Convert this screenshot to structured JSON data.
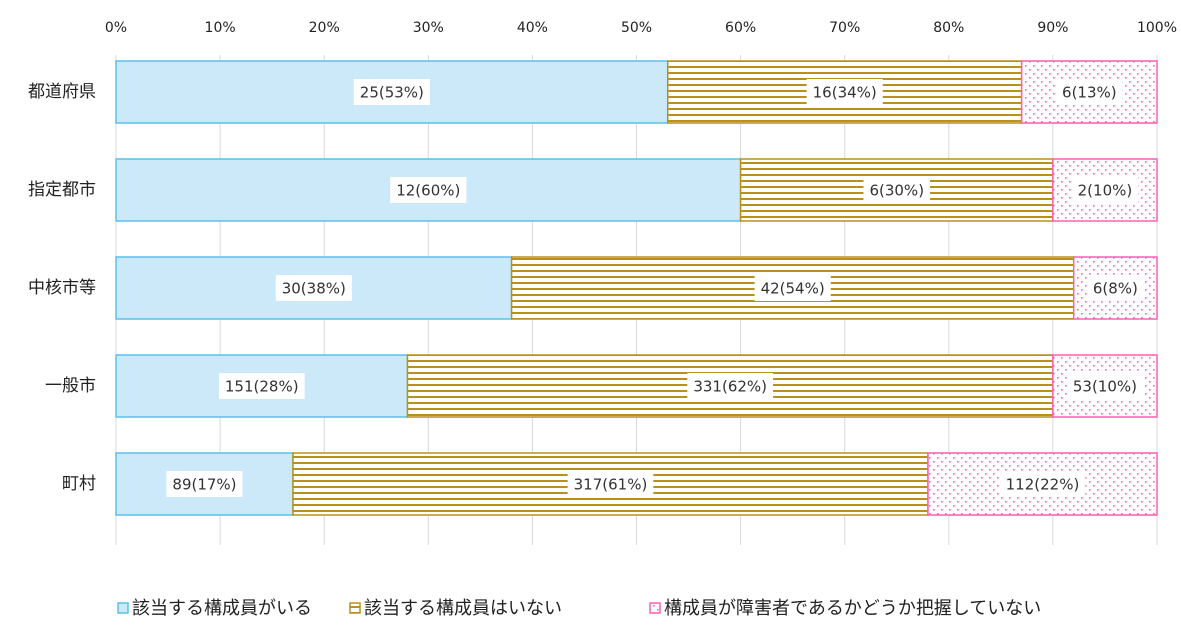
{
  "chart_data": {
    "type": "stacked-bar-horizontal",
    "categories": [
      "都道府県",
      "指定都市",
      "中核市等",
      "一般市",
      "町村"
    ],
    "series": [
      {
        "name": "該当する構成員がいる",
        "color": "#5bc0eb",
        "values": [
          53,
          60,
          38,
          28,
          17
        ],
        "value_labels": [
          "25(53%)",
          "12(60%)",
          "30(38%)",
          "151(28%)",
          "89(17%)"
        ]
      },
      {
        "name": "該当する構成員はいない",
        "color": "#b8901a",
        "values": [
          34,
          30,
          54,
          62,
          61
        ],
        "value_labels": [
          "16(34%)",
          "6(30%)",
          "42(54%)",
          "331(62%)",
          "317(61%)"
        ]
      },
      {
        "name": "構成員が障害者であるかどうか把握していない",
        "color": "#ff5fb4",
        "values": [
          13,
          10,
          8,
          10,
          22
        ],
        "value_labels": [
          "6(13%)",
          "2(10%)",
          "6(8%)",
          "53(10%)",
          "112(22%)"
        ]
      }
    ],
    "xlim": [
      0,
      100
    ],
    "xticks": [
      {
        "value": 0,
        "label": "0%"
      },
      {
        "value": 10,
        "label": "10%"
      },
      {
        "value": 20,
        "label": "20%"
      },
      {
        "value": 30,
        "label": "30%"
      },
      {
        "value": 40,
        "label": "40%"
      },
      {
        "value": 50,
        "label": "50%"
      },
      {
        "value": 60,
        "label": "60%"
      },
      {
        "value": 70,
        "label": "70%"
      },
      {
        "value": 80,
        "label": "80%"
      },
      {
        "value": 90,
        "label": "90%"
      },
      {
        "value": 100,
        "label": "100%"
      }
    ],
    "grid": true,
    "legend": "bottom"
  }
}
